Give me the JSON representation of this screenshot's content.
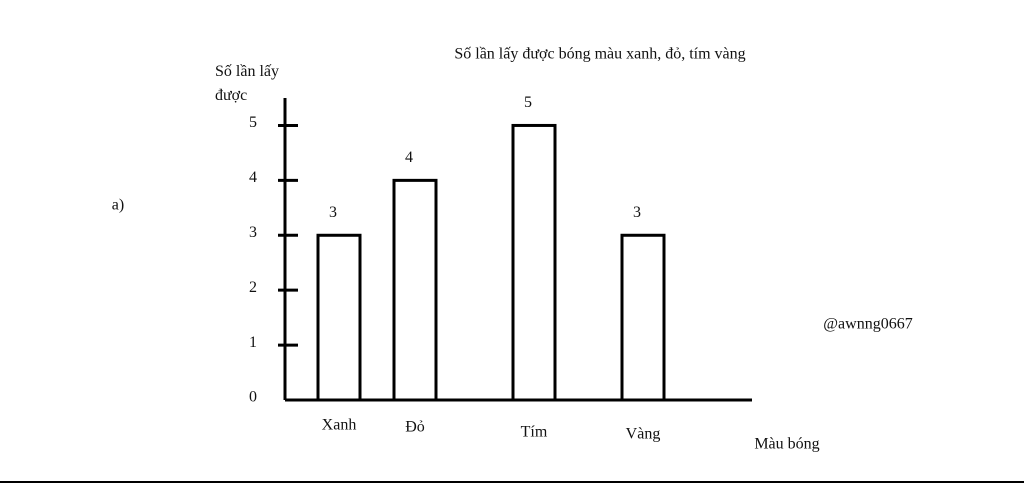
{
  "label": "a)",
  "watermark": "@awnng0667",
  "chart_data": {
    "type": "bar",
    "title": "Số lần lấy được bóng màu xanh, đỏ, tím vàng",
    "y_label": "Số lần lấy được",
    "x_label": "Màu bóng",
    "categories": [
      "Xanh",
      "Đỏ",
      "Tím",
      "Vàng"
    ],
    "values": [
      3,
      4,
      5,
      3
    ],
    "color": "#000000",
    "ylim": [
      0,
      5.5
    ],
    "yticks": [
      0,
      1,
      2,
      3,
      4,
      5
    ]
  }
}
